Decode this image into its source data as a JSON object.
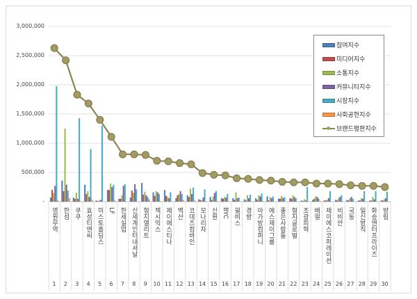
{
  "chart_data": {
    "type": "bar",
    "ylim": [
      0,
      3000000
    ],
    "yticks": [
      "-",
      "500,000",
      "1,000,000",
      "1,500,000",
      "2,000,000",
      "2,500,000",
      "3,000,000"
    ],
    "grid": true,
    "legend_position": "top-right",
    "categories": [
      "영원무역",
      "한섬",
      "쿠쿠",
      "효성티앤씨",
      "미스토홀딩스",
      "LF",
      "한세실업",
      "신세계인터내셔날",
      "형지엘리트",
      "젝시믹스",
      "제이에스티나",
      "백산",
      "코데즈컴바인",
      "모나리자",
      "신원",
      "BYC",
      "윌비스",
      "경방",
      "아가방컴퍼니",
      "에스제이그룹",
      "좋은사람들",
      "형지글로벌",
      "조광피혁",
      "배럴",
      "제이에스코퍼레이션",
      "비비안",
      "국동",
      "일신방직",
      "화승엔터프라이즈",
      "방림"
    ],
    "ranks": [
      "1",
      "2",
      "3",
      "4",
      "5",
      "6",
      "7",
      "8",
      "9",
      "10",
      "11",
      "12",
      "13",
      "14",
      "15",
      "16",
      "17",
      "18",
      "19",
      "20",
      "21",
      "22",
      "23",
      "24",
      "25",
      "26",
      "27",
      "28",
      "29",
      "30"
    ],
    "series": [
      {
        "name": "참여지수",
        "type": "bar",
        "color": "#4f81bd",
        "values": [
          70000,
          360000,
          70000,
          290000,
          20000,
          200000,
          50000,
          70000,
          320000,
          160000,
          200000,
          60000,
          110000,
          40000,
          80000,
          60000,
          60000,
          40000,
          60000,
          90000,
          50000,
          60000,
          20000,
          30000,
          20000,
          30000,
          30000,
          20000,
          20000,
          20000
        ]
      },
      {
        "name": "미디어지수",
        "type": "bar",
        "color": "#c0504d",
        "values": [
          200000,
          180000,
          50000,
          130000,
          10000,
          200000,
          50000,
          190000,
          120000,
          100000,
          100000,
          110000,
          80000,
          30000,
          30000,
          50000,
          30000,
          20000,
          30000,
          20000,
          50000,
          50000,
          10000,
          50000,
          20000,
          20000,
          20000,
          20000,
          20000,
          20000
        ]
      },
      {
        "name": "소통지수",
        "type": "bar",
        "color": "#9bbb59",
        "values": [
          150000,
          1250000,
          150000,
          180000,
          20000,
          310000,
          110000,
          150000,
          170000,
          180000,
          80000,
          130000,
          220000,
          20000,
          90000,
          80000,
          160000,
          110000,
          110000,
          80000,
          100000,
          110000,
          40000,
          90000,
          30000,
          60000,
          60000,
          60000,
          80000,
          40000
        ]
      },
      {
        "name": "커뮤니티지수",
        "type": "bar",
        "color": "#8064a2",
        "values": [
          270000,
          290000,
          50000,
          80000,
          30000,
          250000,
          270000,
          300000,
          110000,
          160000,
          60000,
          180000,
          130000,
          70000,
          150000,
          70000,
          60000,
          60000,
          90000,
          60000,
          60000,
          80000,
          20000,
          80000,
          60000,
          80000,
          80000,
          50000,
          40000,
          60000
        ]
      },
      {
        "name": "시장지수",
        "type": "bar",
        "color": "#4bacc6",
        "values": [
          1980000,
          190000,
          1430000,
          900000,
          1300000,
          290000,
          300000,
          210000,
          80000,
          130000,
          160000,
          130000,
          240000,
          210000,
          180000,
          130000,
          70000,
          120000,
          140000,
          90000,
          80000,
          60000,
          250000,
          50000,
          180000,
          110000,
          50000,
          180000,
          180000,
          170000
        ]
      },
      {
        "name": "사회공헌지수",
        "type": "bar",
        "color": "#f79646",
        "values": [
          20000,
          60000,
          10000,
          30000,
          0,
          20000,
          0,
          0,
          40000,
          10000,
          0,
          30000,
          20000,
          0,
          10000,
          0,
          0,
          0,
          10000,
          0,
          0,
          0,
          0,
          10000,
          0,
          0,
          0,
          0,
          0,
          0
        ]
      },
      {
        "name": "브랜드평판지수",
        "type": "line",
        "color": "#8b8451",
        "values": [
          2630000,
          2420000,
          1830000,
          1680000,
          1400000,
          1110000,
          810000,
          810000,
          800000,
          700000,
          690000,
          660000,
          640000,
          490000,
          460000,
          450000,
          400000,
          390000,
          370000,
          360000,
          340000,
          330000,
          330000,
          310000,
          310000,
          300000,
          280000,
          270000,
          270000,
          250000
        ]
      }
    ]
  }
}
